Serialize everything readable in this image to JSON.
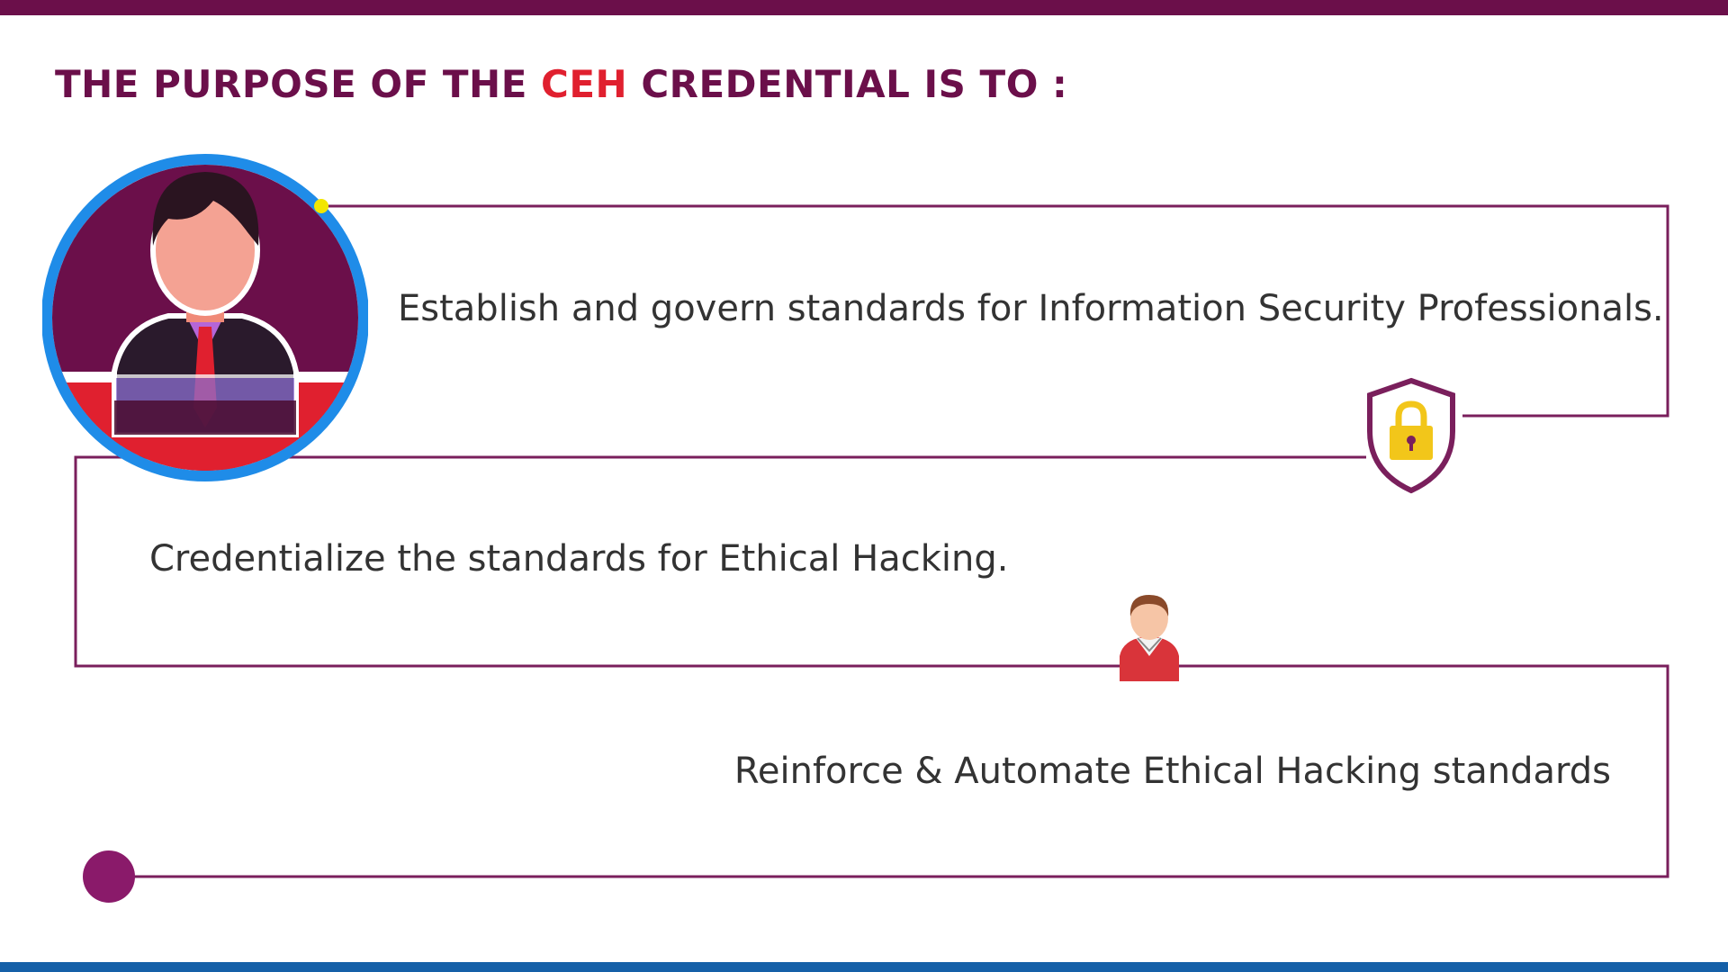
{
  "colors": {
    "primary": "#6b0f4a",
    "line": "#7a1f5c",
    "accent_red": "#e0202f",
    "bottom_bar": "#1560a8",
    "ring_blue": "#1f8ce8",
    "dot_yellow": "#f2e600",
    "lock_gold": "#f2c61a",
    "end_dot": "#8a1a6a"
  },
  "title": {
    "prefix": "THE PURPOSE OF THE ",
    "highlight": "CEH",
    "suffix": " CREDENTIAL IS TO :"
  },
  "steps": [
    {
      "text": "Establish and govern standards for Information Security Professionals.",
      "icon": "shield-lock-icon"
    },
    {
      "text": "Credentialize the standards for Ethical Hacking.",
      "icon": "person-icon"
    },
    {
      "text": "Reinforce & Automate Ethical Hacking standards",
      "icon": "end-dot"
    }
  ],
  "hero_icon": "businessman-avatar-icon"
}
